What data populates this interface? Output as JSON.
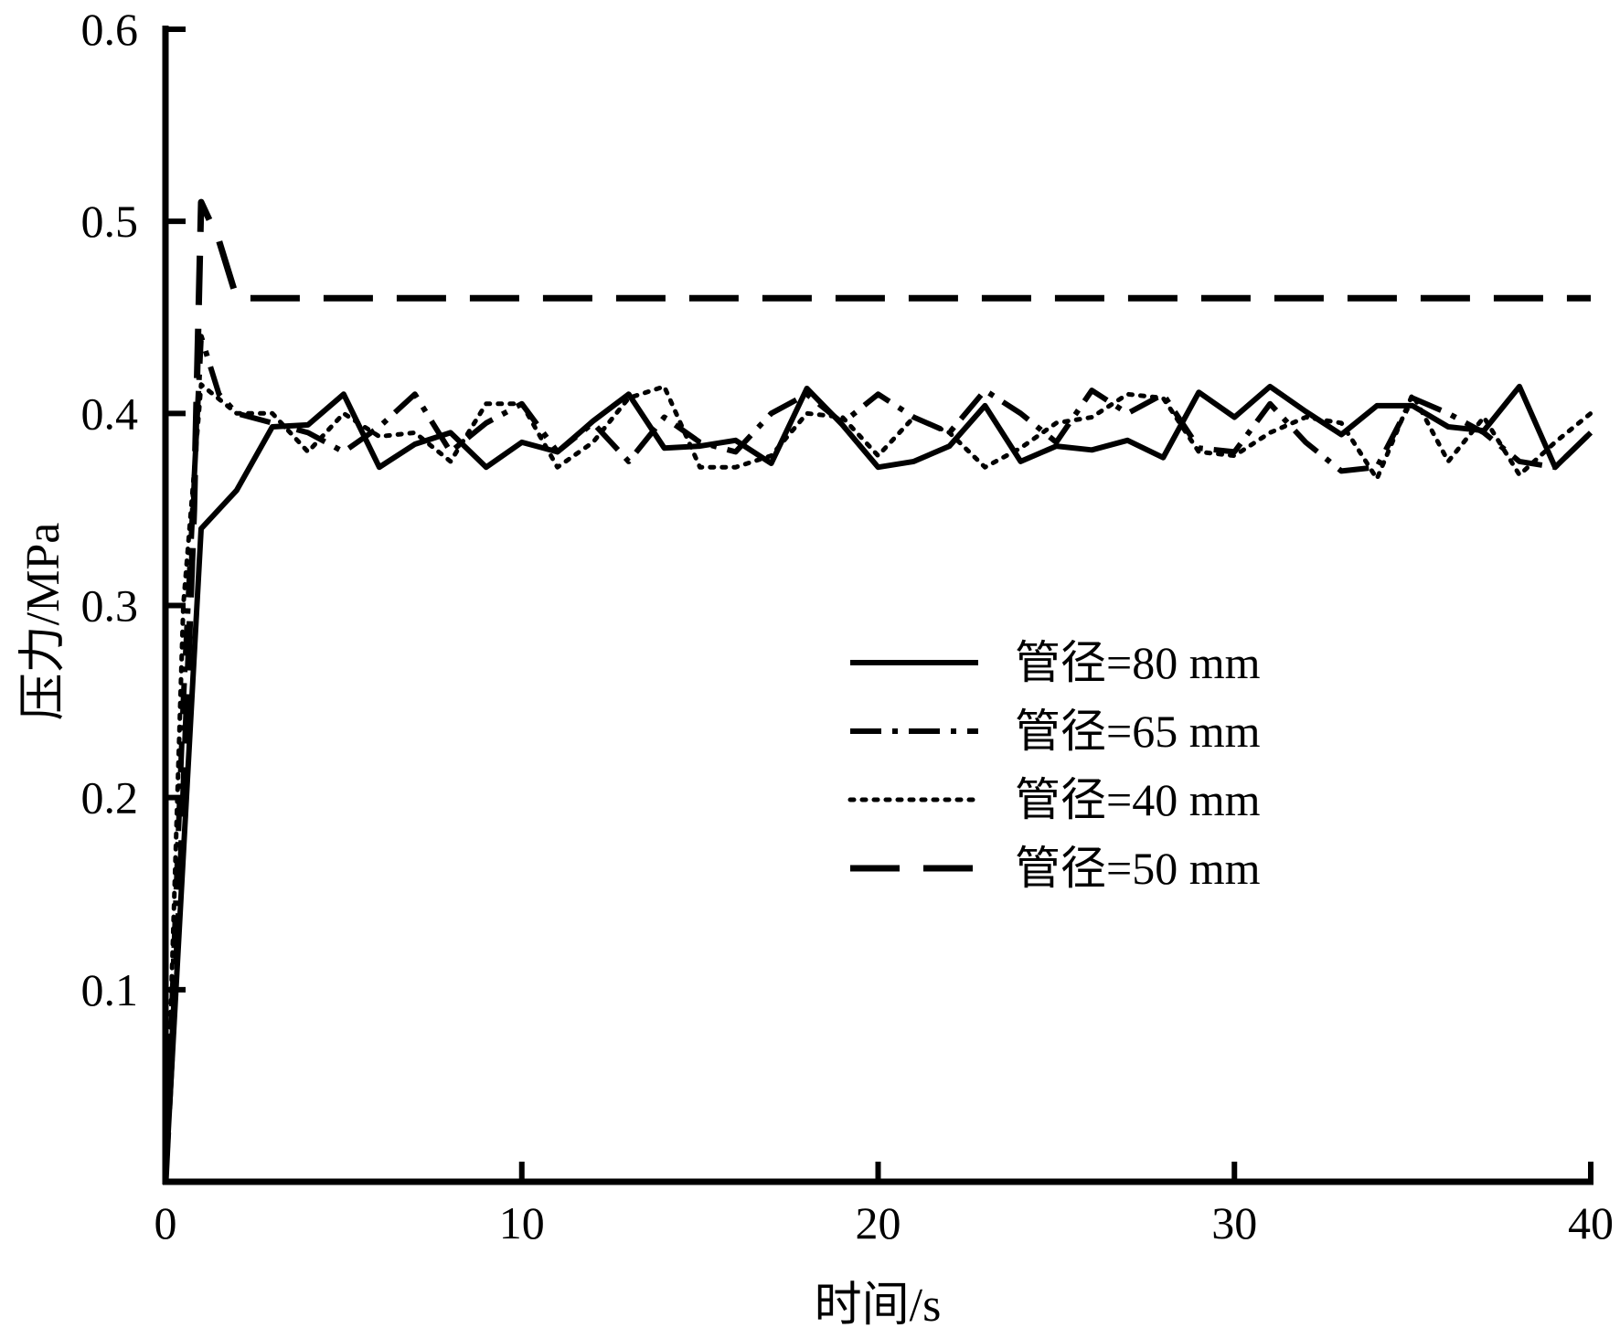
{
  "chart_data": {
    "type": "line",
    "xlabel": "时间/s",
    "ylabel": "压力/MPa",
    "xlim": [
      0,
      40
    ],
    "ylim": [
      0,
      0.6
    ],
    "x_ticks": [
      "0",
      "10",
      "20",
      "30",
      "40"
    ],
    "y_ticks": [
      "0.1",
      "0.2",
      "0.3",
      "0.4",
      "0.5",
      "0.6"
    ],
    "grid": false,
    "legend_position": "right-middle",
    "series": [
      {
        "name": "管径=80 mm",
        "style": "solid",
        "color": "#000000",
        "x": [
          0,
          1,
          2,
          3,
          4,
          5,
          6,
          7,
          8,
          9,
          10,
          11,
          12,
          13,
          14,
          15,
          16,
          17,
          18,
          19,
          20,
          21,
          22,
          23,
          24,
          25,
          26,
          27,
          28,
          29,
          30,
          31,
          32,
          33,
          34,
          35,
          36,
          37,
          38,
          39,
          40
        ],
        "y": [
          0,
          0.34,
          0.36,
          0.393,
          0.394,
          0.41,
          0.372,
          0.384,
          0.39,
          0.372,
          0.385,
          0.38,
          0.396,
          0.41,
          0.382,
          0.383,
          0.386,
          0.374,
          0.413,
          0.394,
          0.372,
          0.375,
          0.383,
          0.404,
          0.375,
          0.383,
          0.381,
          0.386,
          0.377,
          0.411,
          0.398,
          0.414,
          0.401,
          0.389,
          0.404,
          0.404,
          0.393,
          0.391,
          0.414,
          0.372,
          0.39
        ]
      },
      {
        "name": "管径=65 mm",
        "style": "dashdot",
        "color": "#000000",
        "x": [
          0,
          0.5,
          1,
          1.5,
          2,
          3,
          4,
          5,
          6,
          7,
          8,
          9,
          10,
          11,
          12,
          13,
          14,
          15,
          16,
          17,
          18,
          19,
          20,
          21,
          22,
          23,
          24,
          25,
          26,
          27,
          28,
          29,
          30,
          31,
          32,
          33,
          34,
          35,
          36,
          37,
          38,
          39,
          40
        ],
        "y": [
          0,
          0.25,
          0.44,
          0.41,
          0.4,
          0.395,
          0.39,
          0.38,
          0.393,
          0.41,
          0.38,
          0.395,
          0.405,
          0.38,
          0.395,
          0.375,
          0.398,
          0.385,
          0.38,
          0.4,
          0.41,
          0.395,
          0.41,
          0.398,
          0.39,
          0.412,
          0.4,
          0.385,
          0.412,
          0.4,
          0.41,
          0.382,
          0.38,
          0.405,
          0.385,
          0.37,
          0.372,
          0.408,
          0.4,
          0.39,
          0.375,
          0.372,
          0.39
        ]
      },
      {
        "name": "管径=40 mm",
        "style": "dotted",
        "color": "#000000",
        "x": [
          0,
          0.5,
          1,
          2,
          3,
          4,
          5,
          6,
          7,
          8,
          9,
          10,
          11,
          12,
          13,
          14,
          15,
          16,
          17,
          18,
          19,
          20,
          21,
          22,
          23,
          24,
          25,
          26,
          27,
          28,
          29,
          30,
          31,
          32,
          33,
          34,
          35,
          36,
          37,
          38,
          39,
          40
        ],
        "y": [
          0,
          0.3,
          0.415,
          0.4,
          0.4,
          0.38,
          0.4,
          0.388,
          0.39,
          0.375,
          0.405,
          0.405,
          0.372,
          0.385,
          0.408,
          0.414,
          0.372,
          0.372,
          0.378,
          0.4,
          0.398,
          0.378,
          0.398,
          0.39,
          0.372,
          0.382,
          0.395,
          0.398,
          0.41,
          0.408,
          0.38,
          0.378,
          0.39,
          0.398,
          0.395,
          0.366,
          0.41,
          0.375,
          0.398,
          0.368,
          0.385,
          0.4
        ]
      },
      {
        "name": "管径=50 mm",
        "style": "dashed",
        "color": "#000000",
        "x": [
          0,
          0.4,
          0.8,
          1,
          1.5,
          2,
          2.5,
          3,
          4,
          10,
          20,
          30,
          40
        ],
        "y": [
          0,
          0.15,
          0.35,
          0.51,
          0.49,
          0.46,
          0.46,
          0.46,
          0.46,
          0.46,
          0.46,
          0.46,
          0.46
        ]
      }
    ]
  }
}
